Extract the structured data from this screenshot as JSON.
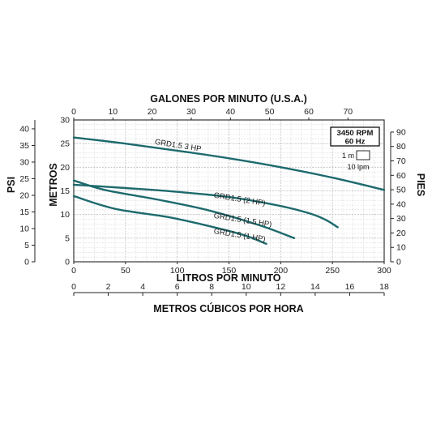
{
  "chart_data": {
    "type": "line",
    "title": "",
    "axes": {
      "bottom": {
        "label": "LITROS POR MINUTO",
        "range": [
          0,
          300
        ],
        "ticks": [
          0,
          50,
          100,
          150,
          200,
          250,
          300
        ]
      },
      "top": {
        "label": "GALONES POR MINUTO (U.S.A.)",
        "range": [
          0,
          79.25
        ],
        "ticks": [
          0,
          10,
          20,
          30,
          40,
          50,
          60,
          70
        ]
      },
      "left_inner": {
        "label": "METROS",
        "range": [
          0,
          30
        ],
        "ticks": [
          0,
          5,
          10,
          15,
          20,
          25,
          30
        ]
      },
      "left_outer": {
        "label": "PSI",
        "range": [
          0,
          42.67
        ],
        "ticks": [
          0,
          5,
          10,
          15,
          20,
          25,
          30,
          35,
          40
        ]
      },
      "right": {
        "label": "PIES",
        "range": [
          0,
          98.4
        ],
        "ticks": [
          0,
          10,
          20,
          30,
          40,
          50,
          60,
          70,
          80,
          90
        ]
      },
      "lower": {
        "label": "METROS CÚBICOS POR HORA",
        "range": [
          0,
          18
        ],
        "ticks": [
          0,
          2,
          4,
          6,
          8,
          10,
          12,
          14,
          16,
          18
        ]
      }
    },
    "grid": true,
    "legend": {
      "rpm": "3450 RPM",
      "freq": "60 Hz",
      "scale_v": "1 m",
      "scale_h": "10 lpm"
    },
    "series": [
      {
        "name": "GRD1.5 3 HP",
        "label_at": [
          78,
          24.9
        ],
        "x": [
          0,
          50,
          100,
          150,
          200,
          250,
          300
        ],
        "y": [
          26.3,
          25.0,
          23.5,
          21.9,
          20.0,
          17.8,
          15.2
        ]
      },
      {
        "name": "GRD1.5 (2 HP)",
        "label_at": [
          135,
          13.6
        ],
        "x": [
          0,
          50,
          100,
          150,
          200,
          230,
          245,
          255
        ],
        "y": [
          16.3,
          15.6,
          14.8,
          13.7,
          11.8,
          10.1,
          8.7,
          7.3
        ]
      },
      {
        "name": "GRD1.5 (1.5 HP)",
        "label_at": [
          135,
          9.3
        ],
        "x": [
          0,
          30,
          80,
          130,
          180,
          213
        ],
        "y": [
          17.2,
          15.2,
          13.2,
          10.9,
          7.7,
          5.0
        ]
      },
      {
        "name": "GRD1.5 (1 HP)",
        "label_at": [
          135,
          6.0
        ],
        "x": [
          0,
          40,
          90,
          130,
          165,
          186
        ],
        "y": [
          13.9,
          11.2,
          9.5,
          7.6,
          5.6,
          3.8
        ]
      }
    ]
  }
}
